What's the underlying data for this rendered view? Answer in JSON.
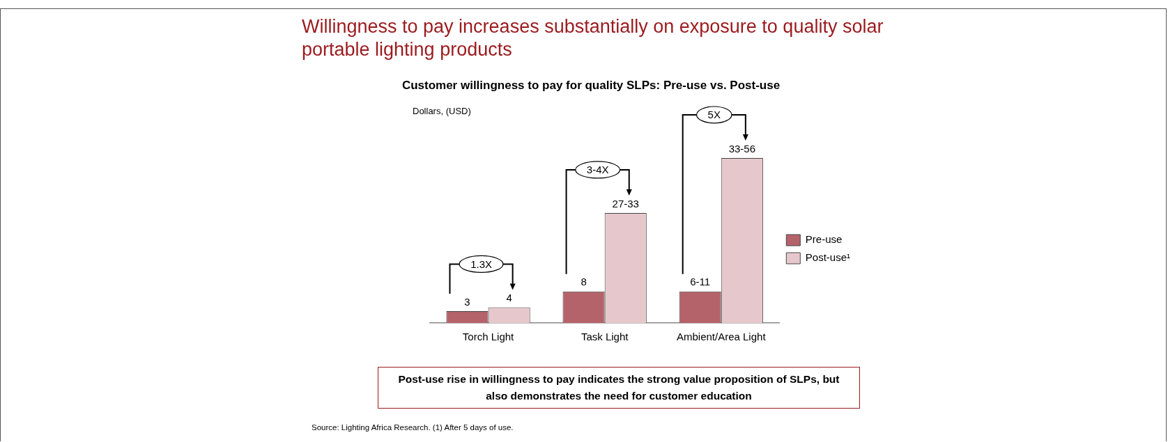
{
  "chart_data": {
    "type": "bar",
    "title": "Willingness to pay increases substantially on exposure to quality solar portable lighting products",
    "subtitle": "Customer willingness to pay for quality SLPs: Pre-use vs. Post-use",
    "ylabel": "Dollars, (USD)",
    "categories": [
      "Torch Light",
      "Task Light",
      "Ambient/Area Light"
    ],
    "series": [
      {
        "name": "Pre-use",
        "color": "#b5636a",
        "values": [
          3,
          8,
          8
        ],
        "value_labels": [
          "3",
          "8",
          "6-11"
        ]
      },
      {
        "name": "Post-use¹",
        "color": "#e6c8cc",
        "values": [
          4,
          28,
          42
        ],
        "value_labels": [
          "4",
          "27-33",
          "33-56"
        ]
      }
    ],
    "legend": "right",
    "grid": false,
    "annotations": [
      "1.3X",
      "3-4X",
      "5X",
      "Post-use rise in willingness to pay indicates the strong value proposition of SLPs, but also demonstrates the need for customer education",
      "Source:  Lighting Africa Research.  (1) After 5 days of use."
    ]
  }
}
